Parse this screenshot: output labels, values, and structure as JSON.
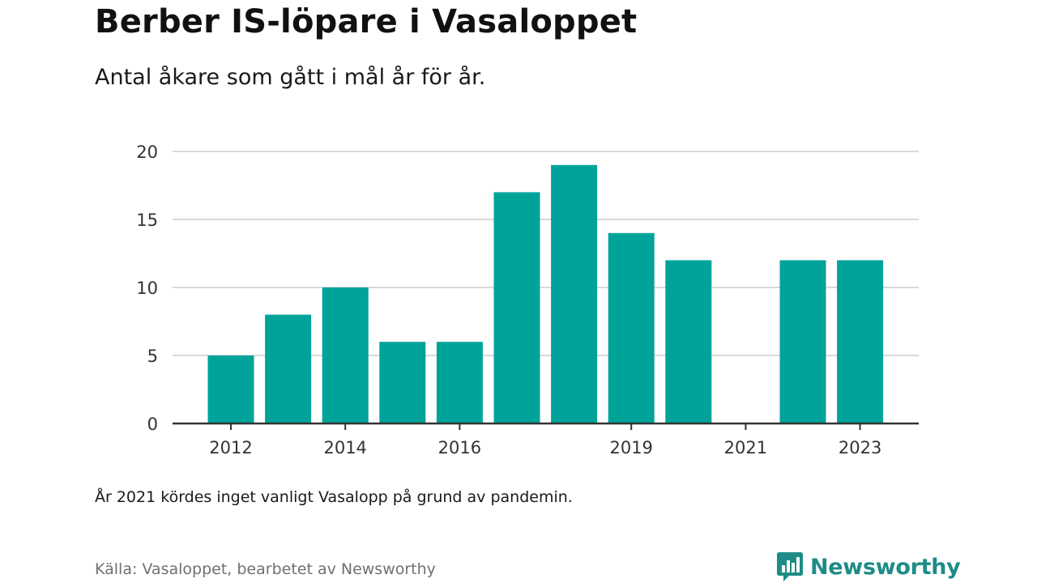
{
  "title": "Berber IS-löpare i Vasaloppet",
  "subtitle": "Antal åkare som gått i mål år för år.",
  "note": "År 2021 kördes inget vanligt Vasalopp på grund av pandemin.",
  "source": "Källa: Vasaloppet, bearbetet av Newsworthy",
  "brand": {
    "name": "Newsworthy",
    "icon": "newsworthy-bars-icon",
    "color": "#1e8c86"
  },
  "colors": {
    "bar": "#00a39a",
    "grid": "#d9d9d9",
    "axis": "#333333"
  },
  "chart_data": {
    "type": "bar",
    "categories": [
      2012,
      2013,
      2014,
      2015,
      2016,
      2017,
      2018,
      2019,
      2020,
      2021,
      2022,
      2023
    ],
    "values": [
      5,
      8,
      10,
      6,
      6,
      17,
      19,
      14,
      12,
      0,
      12,
      12
    ],
    "x_tick_labels": [
      "2012",
      "2014",
      "2016",
      "2019",
      "2021",
      "2023"
    ],
    "y_ticks": [
      0,
      5,
      10,
      15,
      20
    ],
    "ylim": [
      0,
      20
    ],
    "grid": true,
    "legend": false
  }
}
